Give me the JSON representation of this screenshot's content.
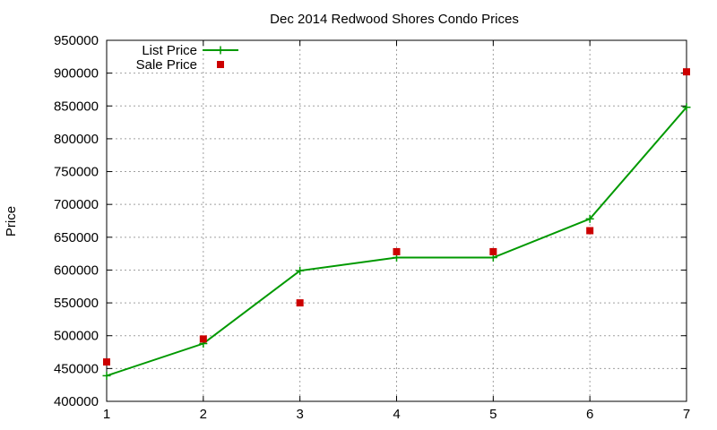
{
  "chart_data": {
    "type": "line",
    "title": "Dec 2014 Redwood Shores Condo Prices",
    "xlabel": "",
    "ylabel": "Price",
    "xlim": [
      1,
      7
    ],
    "ylim": [
      400000,
      950000
    ],
    "x_ticks": [
      1,
      2,
      3,
      4,
      5,
      6,
      7
    ],
    "y_ticks": [
      400000,
      450000,
      500000,
      550000,
      600000,
      650000,
      700000,
      750000,
      800000,
      850000,
      900000,
      950000
    ],
    "grid": true,
    "legend_position": "top-left",
    "series": [
      {
        "name": "List Price",
        "style": "line-with-plus-markers",
        "color": "#009900",
        "x": [
          1,
          2,
          3,
          4,
          5,
          6,
          7
        ],
        "y": [
          439000,
          488000,
          599000,
          619000,
          619000,
          678000,
          848000
        ]
      },
      {
        "name": "Sale Price",
        "style": "square-markers",
        "color": "#cc0000",
        "x": [
          1,
          2,
          3,
          4,
          5,
          6,
          7
        ],
        "y": [
          460000,
          495000,
          550000,
          628000,
          628000,
          660000,
          902000
        ]
      }
    ]
  }
}
